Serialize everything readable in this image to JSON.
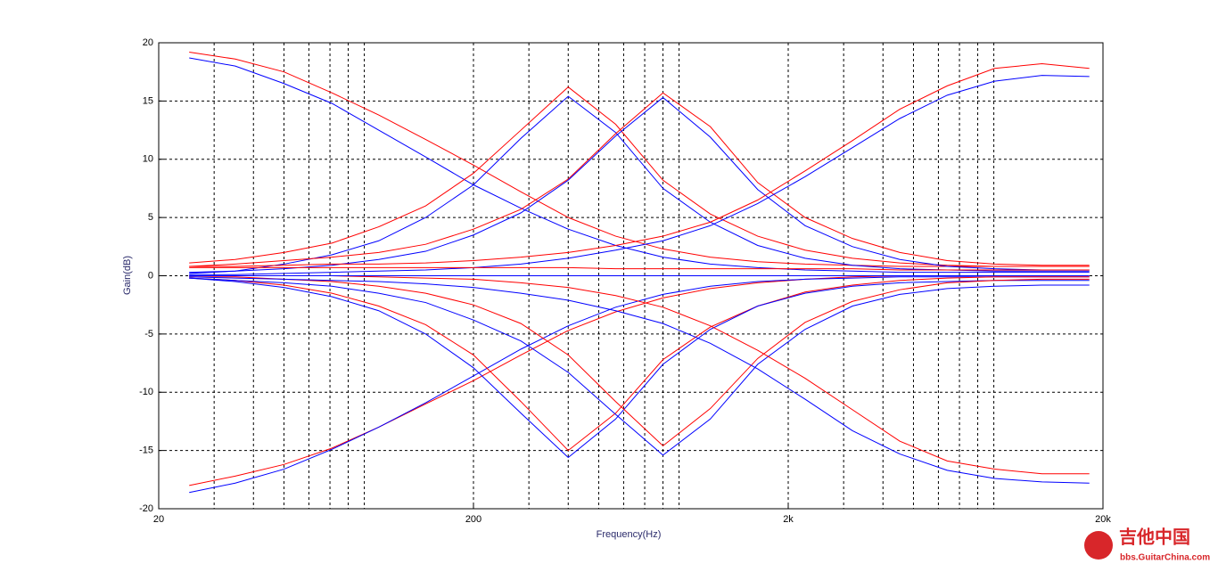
{
  "chart_data": {
    "type": "line",
    "xlabel": "Frequency(Hz)",
    "ylabel": "Gain(dB)",
    "x_scale": "log",
    "grid": true,
    "x_minor_grid": true,
    "xlim": [
      20,
      20000
    ],
    "ylim": [
      -20,
      20
    ],
    "xticks": [
      20,
      200,
      {
        "value": 2000,
        "label": "2k"
      },
      {
        "value": 20000,
        "label": "20k"
      }
    ],
    "yticks": [
      -20,
      -15,
      -10,
      -5,
      0,
      5,
      10,
      15,
      20
    ],
    "x": [
      25,
      35,
      50,
      71,
      100,
      141,
      200,
      283,
      400,
      566,
      800,
      1131,
      1600,
      2263,
      3200,
      4525,
      6400,
      9051,
      12800,
      18102
    ],
    "series": [
      {
        "color": "#ff0000",
        "values": [
          19.2,
          18.6,
          17.5,
          15.7,
          13.8,
          11.7,
          9.5,
          7.2,
          5.0,
          3.4,
          2.3,
          1.6,
          1.2,
          1.0,
          0.9,
          0.8,
          0.8,
          0.8,
          0.8,
          0.8
        ]
      },
      {
        "color": "#0000ff",
        "values": [
          18.7,
          18.0,
          16.5,
          14.8,
          12.5,
          10.2,
          7.8,
          5.8,
          4.0,
          2.6,
          1.6,
          1.0,
          0.7,
          0.5,
          0.4,
          0.3,
          0.3,
          0.3,
          0.3,
          0.3
        ]
      },
      {
        "color": "#ff0000",
        "values": [
          -18.0,
          -17.2,
          -16.2,
          -14.8,
          -13.0,
          -11.0,
          -9.0,
          -6.8,
          -4.7,
          -3.1,
          -1.9,
          -1.1,
          -0.6,
          -0.3,
          -0.1,
          0,
          0,
          0,
          0,
          0
        ]
      },
      {
        "color": "#0000ff",
        "values": [
          -18.6,
          -17.8,
          -16.6,
          -14.9,
          -13.0,
          -10.9,
          -8.6,
          -6.3,
          -4.3,
          -2.7,
          -1.6,
          -0.9,
          -0.5,
          -0.3,
          -0.2,
          -0.1,
          -0.1,
          -0.1,
          -0.1,
          -0.1
        ]
      },
      {
        "color": "#ff0000",
        "values": [
          1.1,
          1.4,
          2.0,
          2.8,
          4.2,
          6.0,
          8.8,
          12.5,
          16.2,
          13.0,
          8.2,
          5.3,
          3.4,
          2.2,
          1.5,
          1.1,
          0.9,
          0.8,
          0.8,
          0.8
        ]
      },
      {
        "color": "#0000ff",
        "values": [
          0.2,
          0.4,
          1.0,
          1.8,
          3.0,
          5.0,
          7.8,
          11.8,
          15.4,
          12.3,
          7.5,
          4.6,
          2.6,
          1.5,
          0.9,
          0.6,
          0.5,
          0.4,
          0.4,
          0.4
        ]
      },
      {
        "color": "#ff0000",
        "values": [
          -0.2,
          -0.4,
          -0.8,
          -1.5,
          -2.6,
          -4.2,
          -6.8,
          -10.8,
          -15.0,
          -11.8,
          -7.2,
          -4.4,
          -2.6,
          -1.4,
          -0.8,
          -0.4,
          -0.2,
          -0.1,
          -0.1,
          -0.1
        ]
      },
      {
        "color": "#0000ff",
        "values": [
          -0.2,
          -0.5,
          -1.0,
          -1.8,
          -3.0,
          -5.0,
          -7.9,
          -11.8,
          -15.6,
          -12.3,
          -7.6,
          -4.6,
          -2.6,
          -1.5,
          -0.9,
          -0.6,
          -0.5,
          -0.4,
          -0.4,
          -0.4
        ]
      },
      {
        "color": "#ff0000",
        "values": [
          0.8,
          1.0,
          1.3,
          1.6,
          2.0,
          2.7,
          4.0,
          5.7,
          8.3,
          12.2,
          15.7,
          12.8,
          8.0,
          5.0,
          3.2,
          2.0,
          1.3,
          1.0,
          0.9,
          0.9
        ]
      },
      {
        "color": "#0000ff",
        "values": [
          0.3,
          0.4,
          0.6,
          0.9,
          1.4,
          2.1,
          3.5,
          5.4,
          8.2,
          12.0,
          15.3,
          11.9,
          7.4,
          4.3,
          2.5,
          1.4,
          0.8,
          0.6,
          0.5,
          0.5
        ]
      },
      {
        "color": "#ff0000",
        "values": [
          -0.1,
          -0.1,
          -0.3,
          -0.5,
          -0.9,
          -1.5,
          -2.5,
          -4.1,
          -6.8,
          -10.8,
          -14.6,
          -11.4,
          -7.1,
          -4.0,
          -2.2,
          -1.2,
          -0.6,
          -0.4,
          -0.3,
          -0.3
        ]
      },
      {
        "color": "#0000ff",
        "values": [
          -0.2,
          -0.4,
          -0.6,
          -0.9,
          -1.5,
          -2.3,
          -3.8,
          -5.6,
          -8.3,
          -11.9,
          -15.4,
          -12.3,
          -7.6,
          -4.6,
          -2.6,
          -1.6,
          -1.1,
          -0.9,
          -0.8,
          -0.8
        ]
      },
      {
        "color": "#ff0000",
        "values": [
          0.8,
          0.8,
          0.9,
          1.0,
          1.0,
          1.1,
          1.3,
          1.6,
          2.0,
          2.6,
          3.4,
          4.6,
          6.5,
          9.0,
          11.6,
          14.3,
          16.3,
          17.8,
          18.2,
          17.8
        ]
      },
      {
        "color": "#0000ff",
        "values": [
          0.1,
          0.1,
          0.2,
          0.3,
          0.4,
          0.5,
          0.7,
          1.0,
          1.5,
          2.2,
          3.0,
          4.3,
          6.2,
          8.5,
          11.0,
          13.5,
          15.5,
          16.7,
          17.2,
          17.1
        ]
      },
      {
        "color": "#ff0000",
        "values": [
          0,
          0,
          0,
          0,
          -0.1,
          -0.2,
          -0.3,
          -0.6,
          -1.0,
          -1.7,
          -2.7,
          -4.3,
          -6.4,
          -8.8,
          -11.5,
          -14.2,
          -15.9,
          -16.6,
          -17.0,
          -17.0
        ]
      },
      {
        "color": "#0000ff",
        "values": [
          -0.1,
          -0.2,
          -0.3,
          -0.4,
          -0.5,
          -0.7,
          -1.0,
          -1.5,
          -2.1,
          -3.0,
          -4.1,
          -5.8,
          -8.0,
          -10.6,
          -13.3,
          -15.3,
          -16.7,
          -17.4,
          -17.7,
          -17.8
        ]
      },
      {
        "color": "#ff0000",
        "values": [
          0.7,
          0.7,
          0.7,
          0.7,
          0.7,
          0.7,
          0.7,
          0.7,
          0.7,
          0.6,
          0.6,
          0.6,
          0.6,
          0.6,
          0.6,
          0.5,
          0.5,
          0.5,
          0.5,
          0.5
        ]
      },
      {
        "color": "#0000ff",
        "values": [
          0,
          0,
          0,
          0,
          0,
          0,
          0,
          0,
          0,
          0,
          0,
          0,
          0,
          0,
          0,
          0,
          0,
          0,
          0,
          0
        ]
      }
    ]
  },
  "watermark": {
    "title": "吉他中国",
    "url": "bbs.GuitarChina.com"
  }
}
